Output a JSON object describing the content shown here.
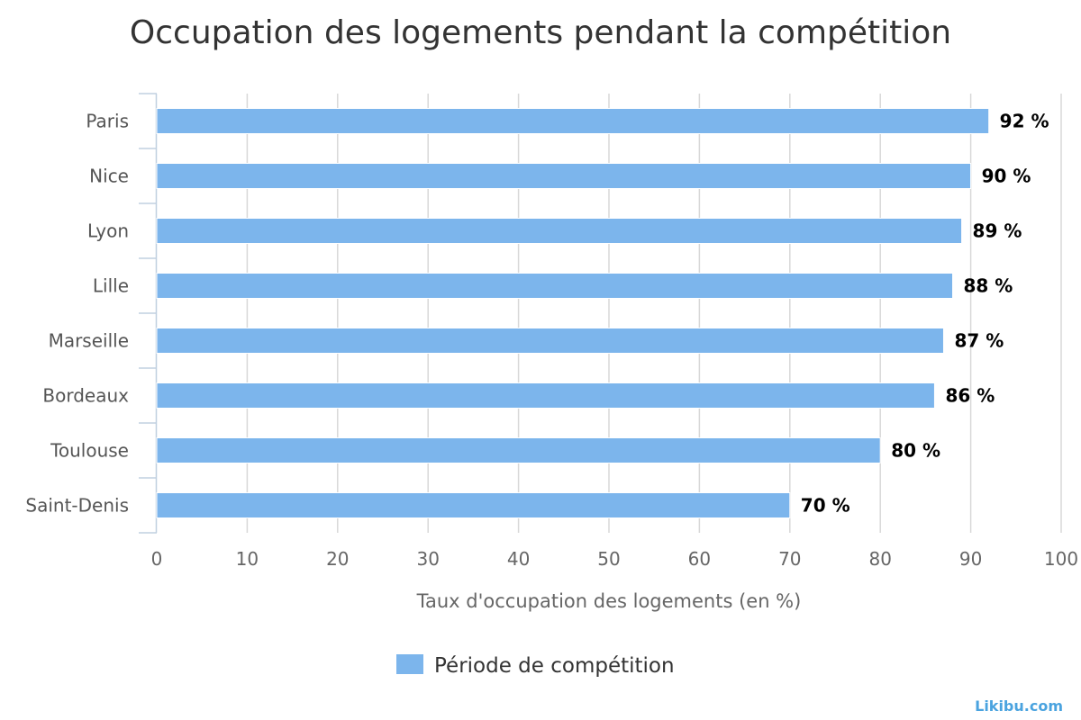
{
  "chart_data": {
    "type": "bar",
    "orientation": "horizontal",
    "title": "Occupation des logements pendant la compétition",
    "categories": [
      "Paris",
      "Nice",
      "Lyon",
      "Lille",
      "Marseille",
      "Bordeaux",
      "Toulouse",
      "Saint-Denis"
    ],
    "series": [
      {
        "name": "Période de compétition",
        "values": [
          92,
          90,
          89,
          88,
          87,
          86,
          80,
          70
        ],
        "color": "#7cb5ec"
      }
    ],
    "data_labels": [
      "92 %",
      "90 %",
      "89 %",
      "88 %",
      "87 %",
      "86 %",
      "80 %",
      "70 %"
    ],
    "xlabel": "Taux d'occupation des logements (en %)",
    "ylabel": "",
    "xlim": [
      0,
      100
    ],
    "ticks": [
      0,
      10,
      20,
      30,
      40,
      50,
      60,
      70,
      80,
      90,
      100
    ],
    "tick_labels": [
      "0",
      "10",
      "20",
      "30",
      "40",
      "50",
      "60",
      "70",
      "80",
      "90",
      "100"
    ],
    "grid": true,
    "legend": "bottom-center"
  },
  "credit": "Likibu.com"
}
